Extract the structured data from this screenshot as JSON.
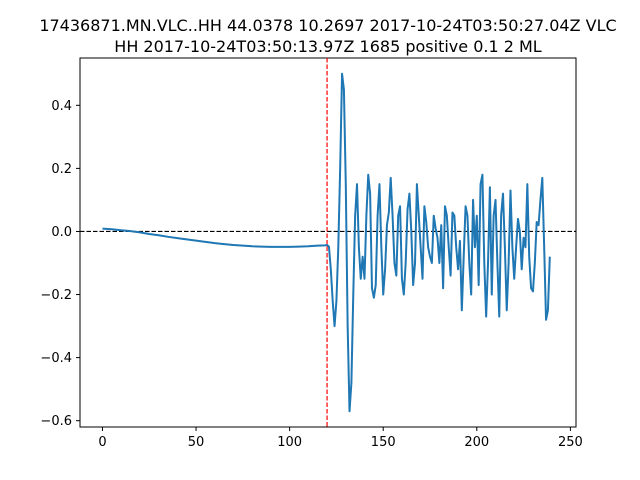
{
  "chart_data": {
    "type": "line",
    "title_line1": "17436871.MN.VLC..HH 44.0378 10.2697 2017-10-24T03:50:27.04Z VLC",
    "title_line2": "HH 2017-10-24T03:50:13.97Z 1685 positive 0.1 2 ML",
    "xlabel": "",
    "ylabel": "",
    "xlim": [
      -12,
      253
    ],
    "ylim": [
      -0.62,
      0.55
    ],
    "x_ticks": [
      0,
      50,
      100,
      150,
      200,
      250
    ],
    "y_ticks": [
      -0.6,
      -0.4,
      -0.2,
      0.0,
      0.2,
      0.4
    ],
    "grid": false,
    "reference_lines": {
      "horizontal_y": 0.0,
      "vertical_x": 120
    },
    "series": [
      {
        "color": "#1f77b4",
        "points": [
          [
            0,
            0.009
          ],
          [
            5,
            0.007
          ],
          [
            10,
            0.004
          ],
          [
            15,
            0.001
          ],
          [
            20,
            -0.003
          ],
          [
            25,
            -0.008
          ],
          [
            30,
            -0.012
          ],
          [
            35,
            -0.017
          ],
          [
            40,
            -0.021
          ],
          [
            45,
            -0.025
          ],
          [
            50,
            -0.029
          ],
          [
            55,
            -0.033
          ],
          [
            60,
            -0.037
          ],
          [
            65,
            -0.04
          ],
          [
            70,
            -0.043
          ],
          [
            75,
            -0.045
          ],
          [
            80,
            -0.047
          ],
          [
            85,
            -0.048
          ],
          [
            90,
            -0.049
          ],
          [
            95,
            -0.049
          ],
          [
            100,
            -0.049
          ],
          [
            105,
            -0.048
          ],
          [
            110,
            -0.047
          ],
          [
            115,
            -0.045
          ],
          [
            119,
            -0.044
          ],
          [
            120,
            -0.043
          ],
          [
            121,
            -0.048
          ],
          [
            122,
            -0.12
          ],
          [
            123,
            -0.22
          ],
          [
            124,
            -0.3
          ],
          [
            125,
            -0.22
          ],
          [
            126,
            -0.05
          ],
          [
            127,
            0.2
          ],
          [
            128,
            0.5
          ],
          [
            129,
            0.45
          ],
          [
            130,
            0.15
          ],
          [
            131,
            -0.3
          ],
          [
            132,
            -0.57
          ],
          [
            133,
            -0.48
          ],
          [
            134,
            -0.2
          ],
          [
            135,
            0.05
          ],
          [
            136,
            0.15
          ],
          [
            137,
            -0.05
          ],
          [
            138,
            -0.15
          ],
          [
            139,
            -0.08
          ],
          [
            140,
            -0.15
          ],
          [
            141,
            0.05
          ],
          [
            142,
            0.18
          ],
          [
            143,
            0.12
          ],
          [
            144,
            -0.18
          ],
          [
            145,
            -0.21
          ],
          [
            146,
            -0.17
          ],
          [
            147,
            0.05
          ],
          [
            148,
            0.15
          ],
          [
            149,
            -0.05
          ],
          [
            150,
            -0.2
          ],
          [
            151,
            -0.12
          ],
          [
            152,
            0.02
          ],
          [
            153,
            0.06
          ],
          [
            154,
            0.17
          ],
          [
            155,
            0.05
          ],
          [
            156,
            -0.1
          ],
          [
            157,
            -0.14
          ],
          [
            158,
            0.05
          ],
          [
            159,
            0.08
          ],
          [
            160,
            -0.15
          ],
          [
            161,
            -0.2
          ],
          [
            162,
            -0.1
          ],
          [
            163,
            0.07
          ],
          [
            164,
            0.12
          ],
          [
            165,
            0.0
          ],
          [
            166,
            -0.17
          ],
          [
            167,
            -0.1
          ],
          [
            168,
            0.15
          ],
          [
            169,
            0.05
          ],
          [
            170,
            -0.05
          ],
          [
            171,
            -0.15
          ],
          [
            172,
            0.08
          ],
          [
            173,
            0.03
          ],
          [
            174,
            -0.05
          ],
          [
            175,
            -0.08
          ],
          [
            176,
            -0.1
          ],
          [
            177,
            0.05
          ],
          [
            178,
            0.01
          ],
          [
            179,
            -0.02
          ],
          [
            180,
            -0.1
          ],
          [
            181,
            0.02
          ],
          [
            182,
            -0.18
          ],
          [
            183,
            0.08
          ],
          [
            184,
            0.05
          ],
          [
            185,
            -0.05
          ],
          [
            186,
            -0.14
          ],
          [
            187,
            0.06
          ],
          [
            188,
            0.05
          ],
          [
            189,
            -0.05
          ],
          [
            190,
            -0.12
          ],
          [
            191,
            -0.03
          ],
          [
            192,
            -0.25
          ],
          [
            193,
            -0.08
          ],
          [
            194,
            0.08
          ],
          [
            195,
            0.05
          ],
          [
            196,
            -0.1
          ],
          [
            197,
            -0.2
          ],
          [
            198,
            0.1
          ],
          [
            199,
            -0.05
          ],
          [
            200,
            0.05
          ],
          [
            201,
            -0.17
          ],
          [
            202,
            0.15
          ],
          [
            203,
            0.18
          ],
          [
            204,
            -0.1
          ],
          [
            205,
            -0.27
          ],
          [
            206,
            -0.1
          ],
          [
            207,
            0.14
          ],
          [
            208,
            -0.2
          ],
          [
            209,
            0.05
          ],
          [
            210,
            0.1
          ],
          [
            211,
            -0.1
          ],
          [
            212,
            -0.27
          ],
          [
            213,
            0.05
          ],
          [
            214,
            0.12
          ],
          [
            215,
            -0.05
          ],
          [
            216,
            -0.25
          ],
          [
            217,
            -0.1
          ],
          [
            218,
            0.13
          ],
          [
            219,
            -0.05
          ],
          [
            220,
            -0.15
          ],
          [
            221,
            -0.05
          ],
          [
            222,
            0.04
          ],
          [
            223,
            0.0
          ],
          [
            224,
            -0.12
          ],
          [
            225,
            -0.02
          ],
          [
            226,
            -0.05
          ],
          [
            227,
            0.15
          ],
          [
            228,
            -0.08
          ],
          [
            229,
            -0.18
          ],
          [
            230,
            -0.19
          ],
          [
            231,
            -0.1
          ],
          [
            232,
            0.03
          ],
          [
            233,
            0.02
          ],
          [
            234,
            0.1
          ],
          [
            235,
            0.17
          ],
          [
            236,
            -0.05
          ],
          [
            237,
            -0.28
          ],
          [
            238,
            -0.25
          ],
          [
            239,
            -0.08
          ]
        ]
      }
    ]
  }
}
